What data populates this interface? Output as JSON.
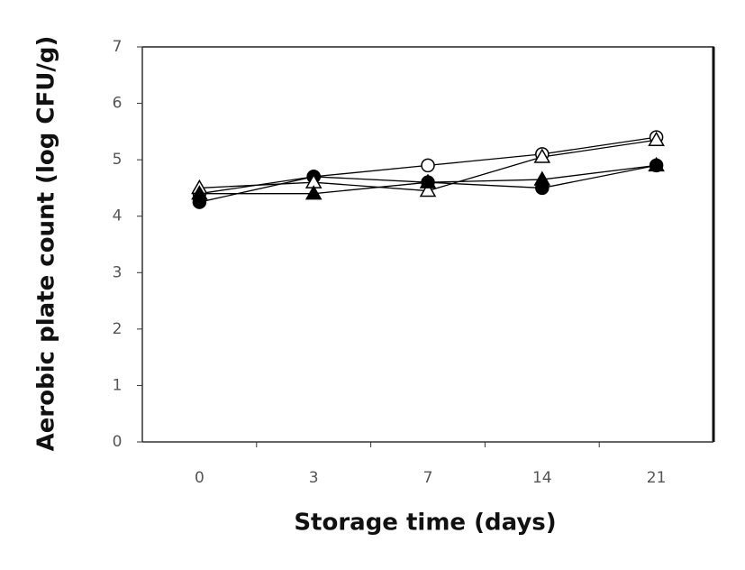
{
  "chart_data": {
    "type": "line",
    "x_label": "Storage time (days)",
    "y_label": "Aerobic plate count (log CFU/g)",
    "categories": [
      "0",
      "3",
      "7",
      "14",
      "21"
    ],
    "series": [
      {
        "color": "#000000",
        "marker": "circle-open",
        "values": [
          4.4,
          4.7,
          4.9,
          5.1,
          5.4
        ]
      },
      {
        "color": "#000000",
        "marker": "circle-filled",
        "values": [
          4.25,
          4.7,
          4.6,
          4.5,
          4.9
        ]
      },
      {
        "color": "#000000",
        "marker": "triangle-open",
        "values": [
          4.5,
          4.6,
          4.45,
          5.05,
          5.35
        ]
      },
      {
        "color": "#000000",
        "marker": "triangle-filled",
        "values": [
          4.4,
          4.4,
          4.6,
          4.65,
          4.9
        ]
      }
    ],
    "ylim": [
      0,
      7
    ],
    "yticks": [
      0,
      1,
      2,
      3,
      4,
      5,
      6,
      7
    ]
  }
}
